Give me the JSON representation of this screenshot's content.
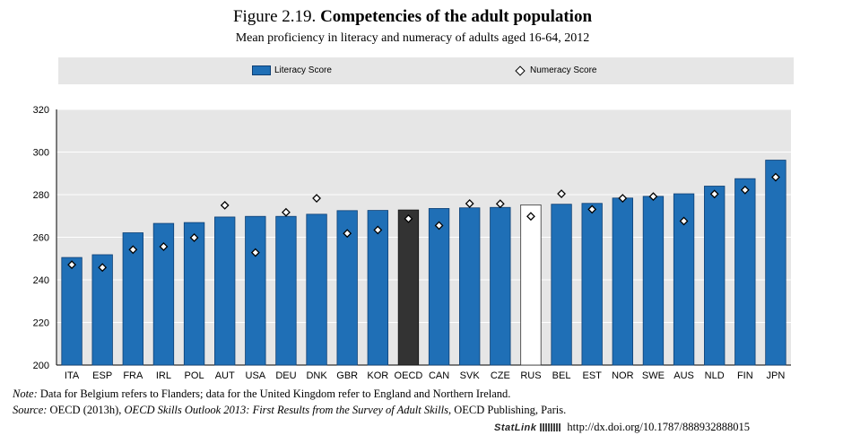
{
  "figure": {
    "number": "Figure 2.19.",
    "title": "Competencies of the adult population",
    "subtitle": "Mean proficiency in literacy and numeracy of adults aged 16-64, 2012"
  },
  "legend": {
    "literacy": "Literacy Score",
    "numeracy": "Numeracy Score"
  },
  "colors": {
    "bar": "#1f6fb6",
    "bar_border": "#0d3f74",
    "oecd_bar": "#333333",
    "russia_bar": "#ffffff",
    "plot_background": "#e6e6e6",
    "legend_background": "#e6e6e6"
  },
  "chart_data": {
    "type": "bar",
    "categories": [
      "ITA",
      "ESP",
      "FRA",
      "IRL",
      "POL",
      "AUT",
      "USA",
      "DEU",
      "DNK",
      "GBR",
      "KOR",
      "OECD",
      "CAN",
      "SVK",
      "CZE",
      "RUS",
      "BEL",
      "EST",
      "NOR",
      "SWE",
      "AUS",
      "NLD",
      "FIN",
      "JPN"
    ],
    "series": [
      {
        "name": "Literacy Score",
        "kind": "bar",
        "values": [
          250.5,
          251.8,
          262.1,
          266.5,
          266.9,
          269.5,
          269.8,
          269.8,
          270.8,
          272.5,
          272.6,
          272.8,
          273.5,
          273.8,
          274.0,
          275.2,
          275.5,
          275.9,
          278.4,
          279.2,
          280.4,
          284.0,
          287.5,
          296.2
        ]
      },
      {
        "name": "Numeracy Score",
        "kind": "marker",
        "values": [
          247.1,
          245.8,
          254.2,
          255.6,
          259.8,
          275.0,
          252.8,
          271.7,
          278.3,
          261.8,
          263.4,
          268.7,
          265.5,
          275.8,
          275.7,
          269.8,
          280.4,
          273.1,
          278.3,
          279.1,
          267.6,
          280.3,
          282.2,
          288.2
        ]
      }
    ],
    "highlight": {
      "OECD": "dark",
      "RUS": "white"
    },
    "ylim": [
      200,
      320
    ],
    "yticks": [
      200,
      220,
      240,
      260,
      280,
      300,
      320
    ],
    "grid": true,
    "legend_position": "top"
  },
  "notes": {
    "note_label": "Note:",
    "note_text": "Data for Belgium refers to Flanders; data for the United Kingdom refer to England and Northern Ireland.",
    "source_label": "Source:",
    "source_prefix": "OECD (2013h), ",
    "source_title": "OECD Skills Outlook 2013: First Results from the Survey of Adult Skills",
    "source_suffix": ", OECD Publishing, Paris."
  },
  "statlink": {
    "logo": "StatLink",
    "url": "http://dx.doi.org/10.1787/888932888015"
  }
}
